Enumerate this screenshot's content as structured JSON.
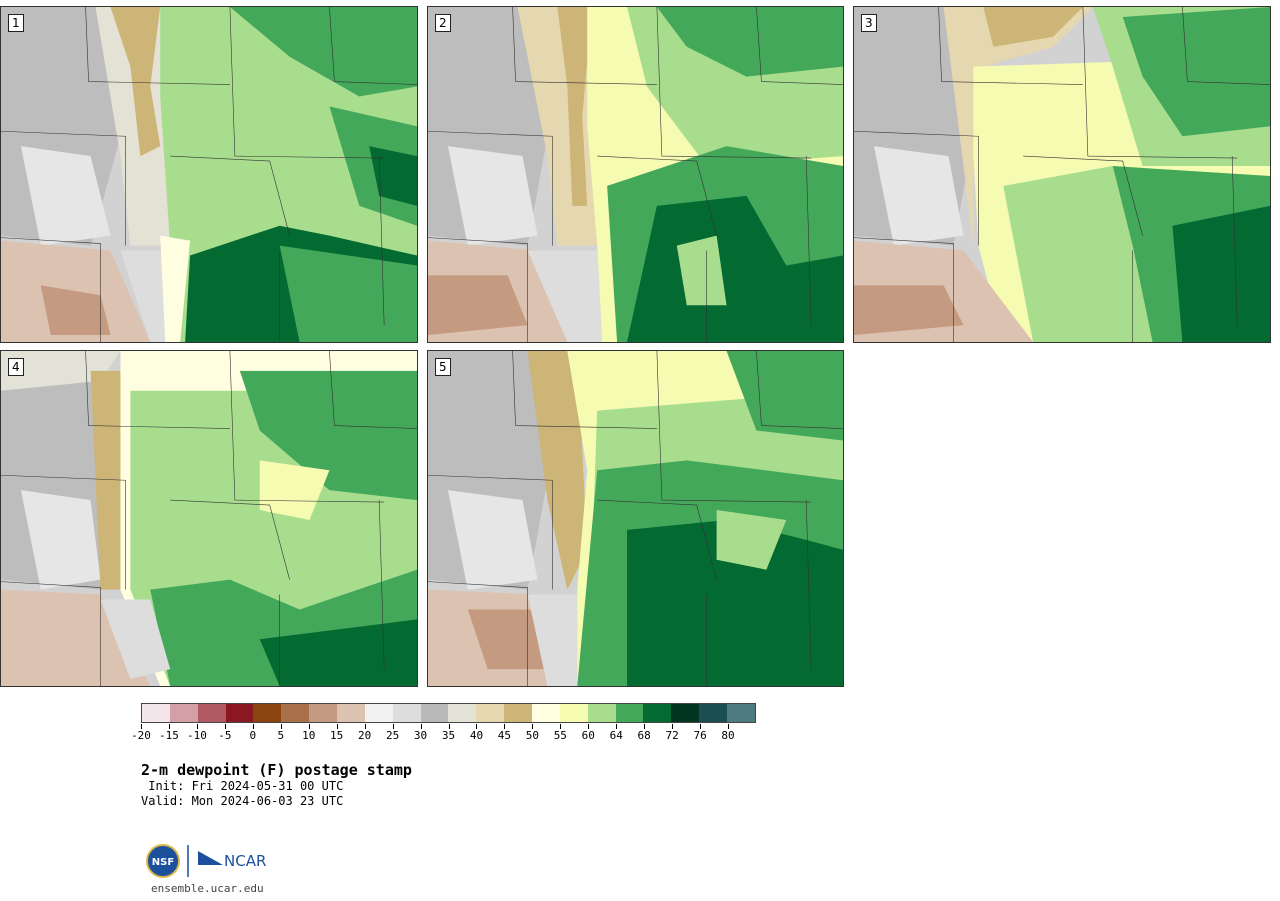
{
  "panels": [
    {
      "label": "1"
    },
    {
      "label": "2"
    },
    {
      "label": "3"
    },
    {
      "label": "4"
    },
    {
      "label": "5"
    }
  ],
  "legend": {
    "tick_labels": [
      "-20",
      "-15",
      "-10",
      "-5",
      "0",
      "5",
      "10",
      "15",
      "20",
      "25",
      "30",
      "35",
      "40",
      "45",
      "50",
      "55",
      "60",
      "64",
      "68",
      "72",
      "76",
      "80"
    ],
    "colors": [
      "#f3e6ea",
      "#d4a0a6",
      "#b05a63",
      "#8a1722",
      "#8a4510",
      "#a8704b",
      "#c49a80",
      "#dcc2b0",
      "#f1f1f1",
      "#dddddd",
      "#b9b9b9",
      "#e2e2d6",
      "#e5d7b0",
      "#cdb578",
      "#fffee0",
      "#f6fbb2",
      "#a9dd8e",
      "#43a85a",
      "#036a32",
      "#003520",
      "#1a4e50",
      "#4f7a80"
    ]
  },
  "title": "2-m dewpoint (F) postage stamp",
  "init": " Init: Fri 2024-05-31 00 UTC",
  "valid": "Valid: Mon 2024-06-03 23 UTC",
  "logo": {
    "nsf": "NSF",
    "ncar": "NCAR"
  },
  "site": "ensemble.ucar.edu"
}
